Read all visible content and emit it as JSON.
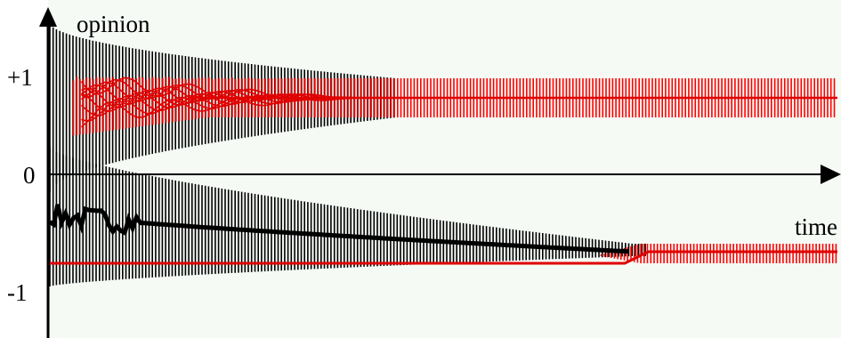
{
  "chart_data": {
    "type": "line",
    "xlabel": "time",
    "ylabel": "opinion",
    "x_range": [
      0,
      1
    ],
    "y_range": [
      -1.3,
      1.55
    ],
    "y_ticks": [
      {
        "value": 1,
        "label": "+1"
      },
      {
        "value": 0,
        "label": "0"
      },
      {
        "value": -1,
        "label": "-1"
      }
    ],
    "grid": false,
    "legend": "none",
    "colors": {
      "background": "#f5faf5",
      "cluster_bar": "#000000",
      "extremist_bar": "#ff0000",
      "extremist_line": "#e00000",
      "axis": "#000000"
    },
    "series": [
      {
        "role": "positive-extremists",
        "color": "#ff0000",
        "opinion_center": 0.86,
        "bar_top": 1.08,
        "bar_bottom": 0.64,
        "spread_end_x": 0.39
      },
      {
        "role": "negative-extremists",
        "color": "#ff0000",
        "opinion_center": -0.87,
        "bar_top": -0.78,
        "bar_bottom": -1.0,
        "emerges_at_x": 0.74
      },
      {
        "role": "moderate-cluster",
        "color": "#000000",
        "start_opinion": -0.45,
        "end_opinion": -0.87,
        "merge_x": 0.74,
        "band_start": [
          -1.26,
          0.3
        ],
        "band_end": [
          -0.92,
          -0.78
        ]
      },
      {
        "role": "positive-dispersion",
        "color": "#000000",
        "start_band": [
          -0.2,
          1.7
        ],
        "end_x": 0.44,
        "end_band": [
          0.64,
          1.08
        ]
      },
      {
        "role": "negative-baseline",
        "color": "#ff0000",
        "opinion": -1.0,
        "x_end": 0.73
      }
    ]
  }
}
